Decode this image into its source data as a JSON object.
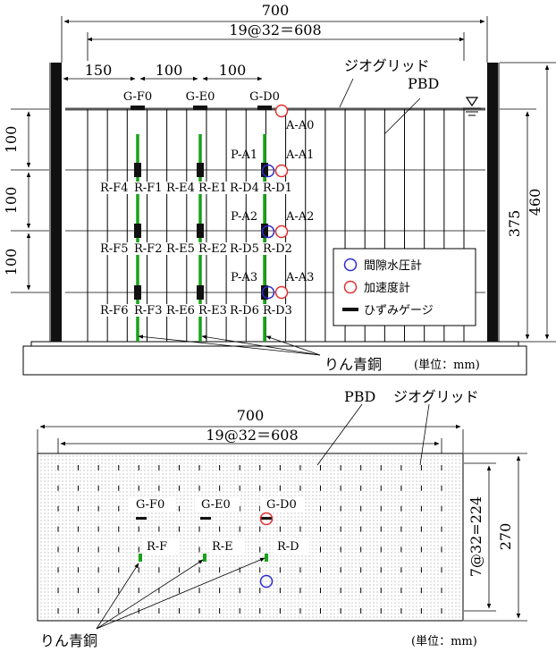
{
  "elevation": {
    "dims": {
      "width": "700",
      "pitch": "19@32＝608",
      "s150": "150",
      "s100a": "100",
      "s100b": "100",
      "v100a": "100",
      "v100b": "100",
      "v100c": "100",
      "h375": "375",
      "h460": "460"
    },
    "callouts": {
      "geogrid": "ジオグリッド",
      "pbd": "PBD",
      "bronze": "りん青銅",
      "unit": "(単位：mm)"
    },
    "strain_top": [
      "G-F0",
      "G-E0",
      "G-D0"
    ],
    "acc_labels": [
      "A-A0",
      "A-A1",
      "A-A2",
      "A-A3"
    ],
    "pp_labels": [
      "P-A1",
      "P-A2",
      "P-A3"
    ],
    "row_labels": [
      [
        "R-F4",
        "R-F1",
        "R-E4",
        "R-E1",
        "R-D4",
        "R-D1"
      ],
      [
        "R-F5",
        "R-F2",
        "R-E5",
        "R-E2",
        "R-D5",
        "R-D2"
      ],
      [
        "R-F6",
        "R-F3",
        "R-E6",
        "R-E3",
        "R-D6",
        "R-D3"
      ]
    ],
    "legend": [
      "間隙水圧計",
      "加速度計",
      "ひずみゲージ"
    ]
  },
  "plan": {
    "dims": {
      "width": "700",
      "pitch": "19@32＝608",
      "pitch_v": "7@32=224",
      "h270": "270"
    },
    "callouts": {
      "pbd": "PBD",
      "geogrid": "ジオグリッド",
      "bronze": "りん青銅",
      "unit": "(単位：mm)"
    },
    "strain_labels": [
      "G-F0",
      "G-E0",
      "G-D0"
    ],
    "rod_labels": [
      "R-F",
      "R-E",
      "R-D"
    ]
  },
  "colors": {
    "bronze": "#19a319",
    "accelerometer": "#e03030",
    "pore_pressure": "#2b2bd0"
  }
}
